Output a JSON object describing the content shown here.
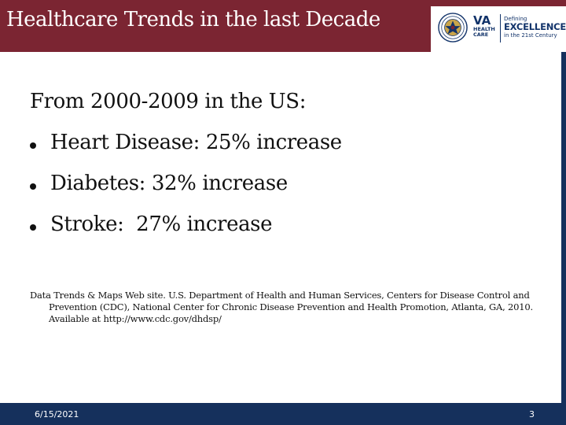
{
  "header": {
    "title": "Healthcare Trends in the last Decade",
    "background_color": "#7b2532",
    "logo": {
      "seal_icon": "va-seal-icon",
      "va_label": "VA",
      "health_label": "HEALTH",
      "care_label": "CARE",
      "defining_label": "Defining",
      "excellence_label": "EXCELLENCE",
      "century_label": "in the 21st Century"
    }
  },
  "body": {
    "intro": "From 2000-2009 in the US:",
    "bullets": [
      "Heart Disease: 25% increase",
      "Diabetes: 32% increase",
      "Stroke:  27% increase"
    ],
    "citation": "Data Trends & Maps Web site. U.S. Department of Health and Human Services, Centers for Disease Control and Prevention (CDC), National Center for Chronic Disease Prevention and Health Promotion, Atlanta, GA, 2010. Available at http://www.cdc.gov/dhdsp/"
  },
  "footer": {
    "date": "6/15/2021",
    "page_number": "3",
    "background_color": "#15305c"
  }
}
